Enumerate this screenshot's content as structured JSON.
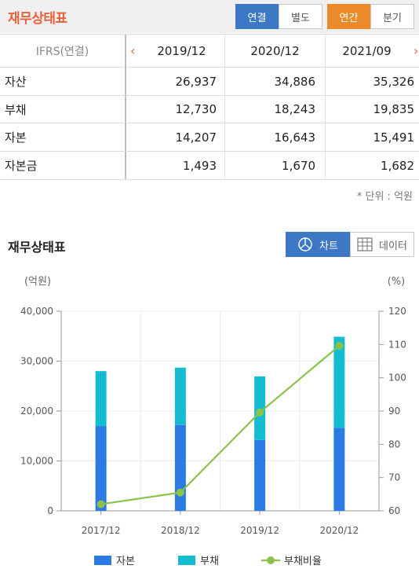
{
  "header": {
    "title": "재무상태표",
    "consolidated_label": "연결",
    "separate_label": "별도",
    "annual_label": "연간",
    "quarterly_label": "분기"
  },
  "table": {
    "standard": "IFRS(연결)",
    "columns": [
      "2019/12",
      "2020/12",
      "2021/09"
    ],
    "rows": [
      {
        "label": "자산",
        "values": [
          "26,937",
          "34,886",
          "35,326"
        ]
      },
      {
        "label": "부채",
        "values": [
          "12,730",
          "18,243",
          "19,835"
        ]
      },
      {
        "label": "자본",
        "values": [
          "14,207",
          "16,643",
          "15,491"
        ]
      },
      {
        "label": "자본금",
        "values": [
          "1,493",
          "1,670",
          "1,682"
        ]
      }
    ],
    "unit_note": "* 단위 : 억원"
  },
  "chart_section": {
    "title": "재무상태표",
    "chart_button": "차트",
    "data_button": "데이터"
  },
  "colors": {
    "equity": "#2c7be5",
    "liability": "#13bcd1",
    "ratio": "#8bc34a",
    "accent_orange": "#ec8a2a",
    "accent_blue": "#3c78c3",
    "title_red": "#e8613c"
  },
  "chart_data": {
    "type": "bar",
    "stacked": true,
    "categories": [
      "2017/12",
      "2018/12",
      "2019/12",
      "2020/12"
    ],
    "series": [
      {
        "name": "자본",
        "values": [
          17000,
          17200,
          14207,
          16643
        ],
        "color": "#2c7be5",
        "axis": "left"
      },
      {
        "name": "부채",
        "values": [
          11000,
          11500,
          12730,
          18243
        ],
        "color": "#13bcd1",
        "axis": "left"
      },
      {
        "name": "부채비율",
        "type": "line",
        "values": [
          62,
          65.5,
          89.6,
          109.6
        ],
        "color": "#8bc34a",
        "axis": "right"
      }
    ],
    "ylabel_left": "(억원)",
    "ylabel_right": "(%)",
    "ylim_left": [
      0,
      40000
    ],
    "ylim_right": [
      60,
      120
    ],
    "yticks_left": [
      "0",
      "10,000",
      "20,000",
      "30,000",
      "40,000"
    ],
    "yticks_right": [
      "60",
      "70",
      "80",
      "90",
      "100",
      "110",
      "120"
    ],
    "grid": true,
    "legend": "bottom"
  }
}
